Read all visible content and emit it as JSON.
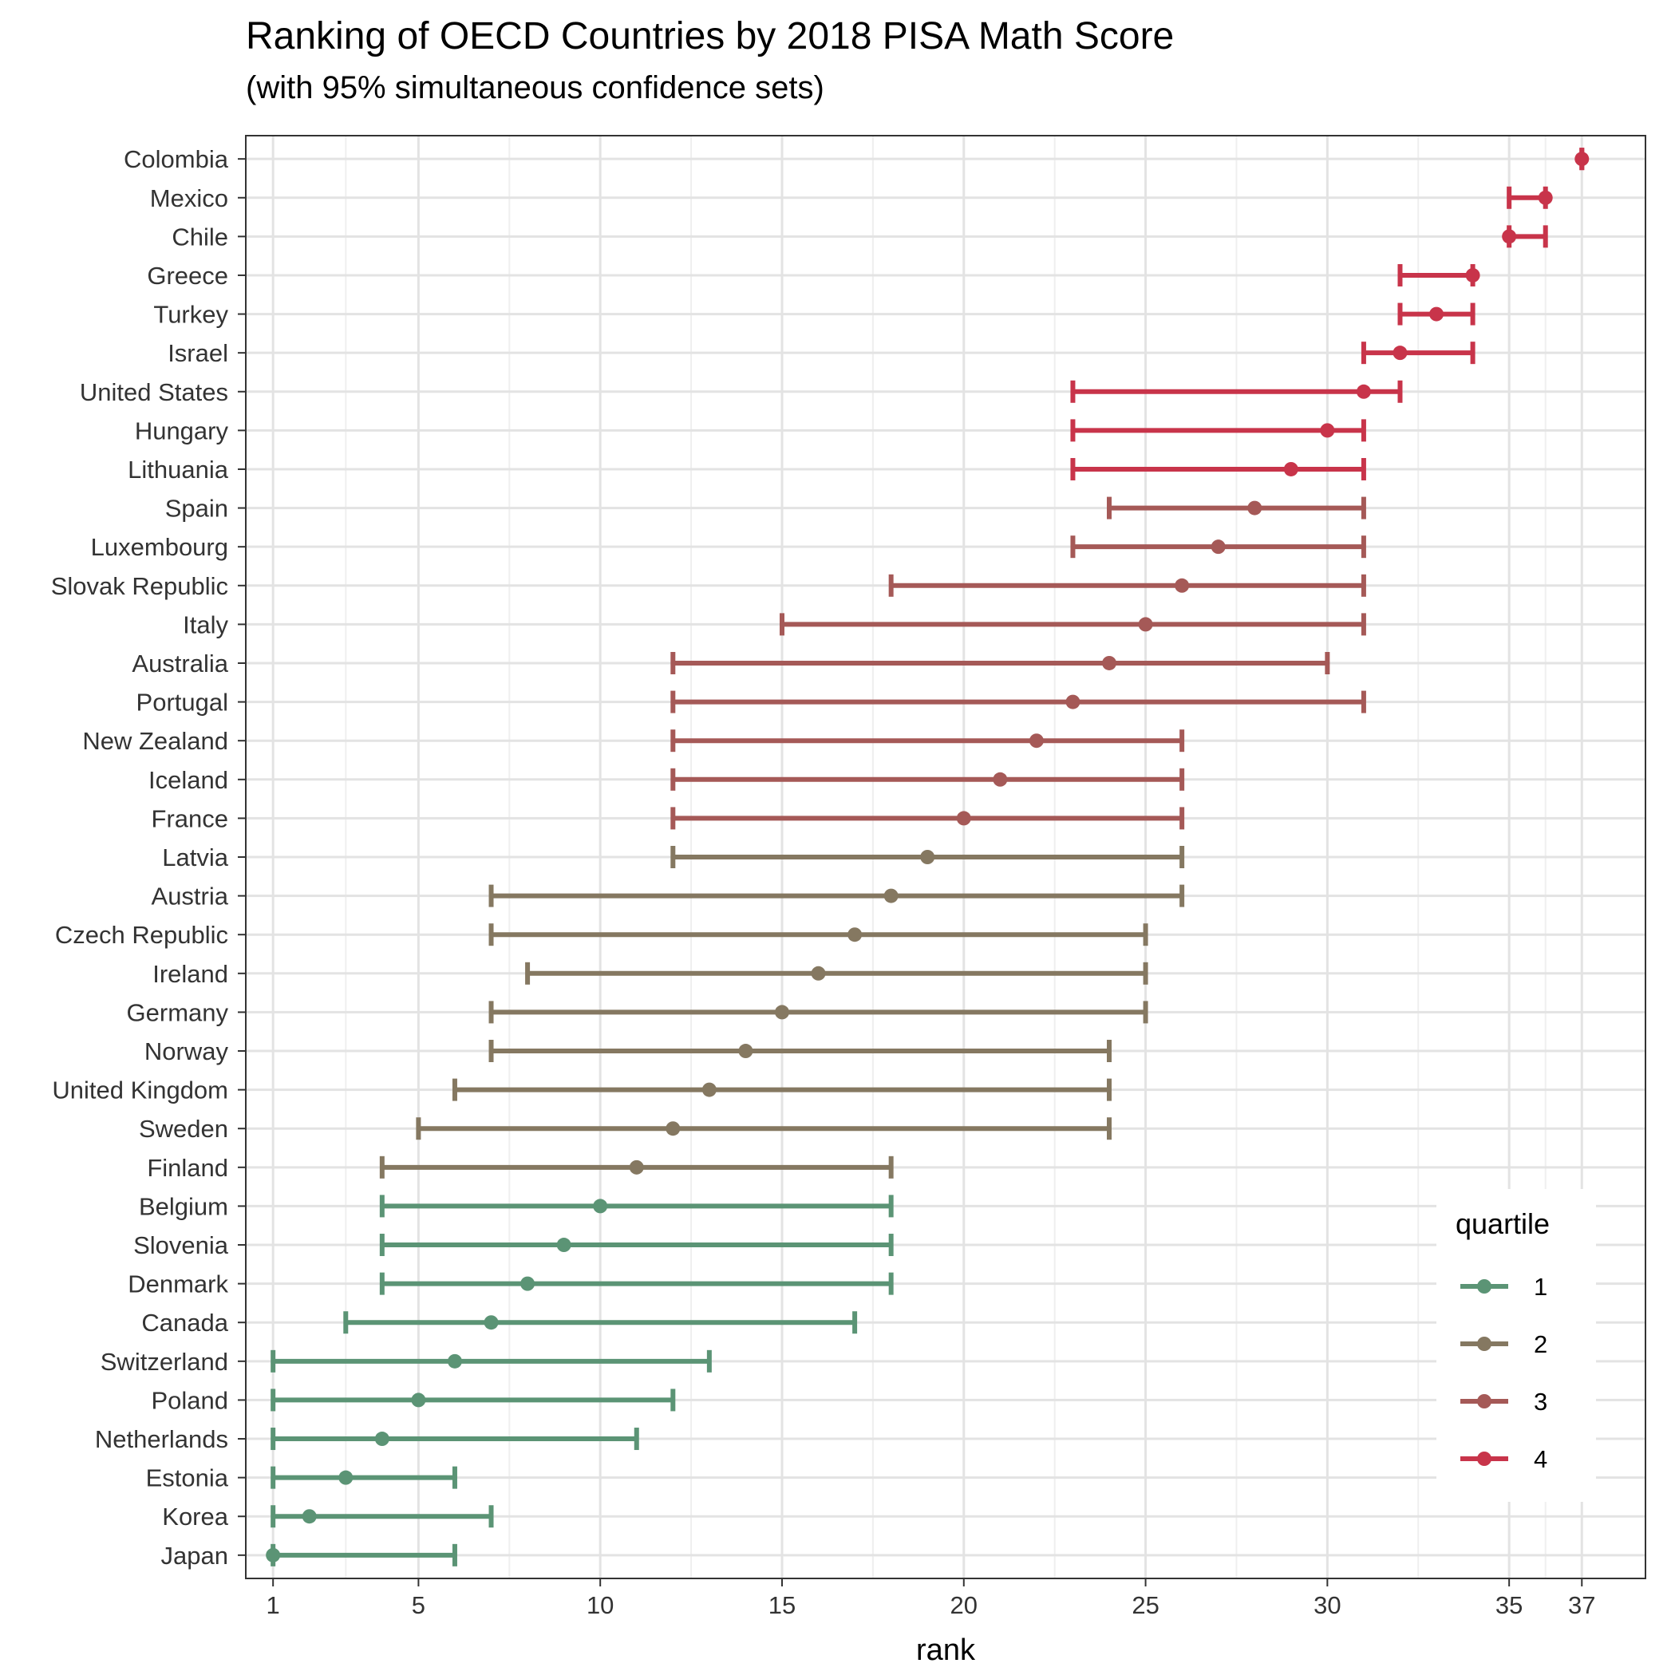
{
  "chart_data": {
    "type": "errorbar",
    "title": "Ranking of OECD Countries by 2018 PISA Math Score",
    "subtitle": "(with 95% simultaneous confidence sets)",
    "xlabel": "rank",
    "ylabel": "",
    "xlim": [
      0.25,
      38.75
    ],
    "x_ticks": [
      1,
      5,
      10,
      15,
      20,
      25,
      30,
      35,
      37
    ],
    "grid": true,
    "legend": {
      "title": "quartile",
      "placement": "bottom-right",
      "entries": [
        {
          "label": "1",
          "color": "#5b9475"
        },
        {
          "label": "2",
          "color": "#857861"
        },
        {
          "label": "3",
          "color": "#a55957"
        },
        {
          "label": "4",
          "color": "#c8344a"
        }
      ]
    },
    "countries": [
      {
        "name": "Colombia",
        "rank": 37,
        "lower": 37,
        "upper": 37,
        "quartile": 4
      },
      {
        "name": "Mexico",
        "rank": 36,
        "lower": 35,
        "upper": 36,
        "quartile": 4
      },
      {
        "name": "Chile",
        "rank": 35,
        "lower": 35,
        "upper": 36,
        "quartile": 4
      },
      {
        "name": "Greece",
        "rank": 34,
        "lower": 32,
        "upper": 34,
        "quartile": 4
      },
      {
        "name": "Turkey",
        "rank": 33,
        "lower": 32,
        "upper": 34,
        "quartile": 4
      },
      {
        "name": "Israel",
        "rank": 32,
        "lower": 31,
        "upper": 34,
        "quartile": 4
      },
      {
        "name": "United States",
        "rank": 31,
        "lower": 23,
        "upper": 32,
        "quartile": 4
      },
      {
        "name": "Hungary",
        "rank": 30,
        "lower": 23,
        "upper": 31,
        "quartile": 4
      },
      {
        "name": "Lithuania",
        "rank": 29,
        "lower": 23,
        "upper": 31,
        "quartile": 4
      },
      {
        "name": "Spain",
        "rank": 28,
        "lower": 24,
        "upper": 31,
        "quartile": 3
      },
      {
        "name": "Luxembourg",
        "rank": 27,
        "lower": 23,
        "upper": 31,
        "quartile": 3
      },
      {
        "name": "Slovak Republic",
        "rank": 26,
        "lower": 18,
        "upper": 31,
        "quartile": 3
      },
      {
        "name": "Italy",
        "rank": 25,
        "lower": 15,
        "upper": 31,
        "quartile": 3
      },
      {
        "name": "Australia",
        "rank": 24,
        "lower": 12,
        "upper": 30,
        "quartile": 3
      },
      {
        "name": "Portugal",
        "rank": 23,
        "lower": 12,
        "upper": 31,
        "quartile": 3
      },
      {
        "name": "New Zealand",
        "rank": 22,
        "lower": 12,
        "upper": 26,
        "quartile": 3
      },
      {
        "name": "Iceland",
        "rank": 21,
        "lower": 12,
        "upper": 26,
        "quartile": 3
      },
      {
        "name": "France",
        "rank": 20,
        "lower": 12,
        "upper": 26,
        "quartile": 3
      },
      {
        "name": "Latvia",
        "rank": 19,
        "lower": 12,
        "upper": 26,
        "quartile": 2
      },
      {
        "name": "Austria",
        "rank": 18,
        "lower": 7,
        "upper": 26,
        "quartile": 2
      },
      {
        "name": "Czech Republic",
        "rank": 17,
        "lower": 7,
        "upper": 25,
        "quartile": 2
      },
      {
        "name": "Ireland",
        "rank": 16,
        "lower": 8,
        "upper": 25,
        "quartile": 2
      },
      {
        "name": "Germany",
        "rank": 15,
        "lower": 7,
        "upper": 25,
        "quartile": 2
      },
      {
        "name": "Norway",
        "rank": 14,
        "lower": 7,
        "upper": 24,
        "quartile": 2
      },
      {
        "name": "United Kingdom",
        "rank": 13,
        "lower": 6,
        "upper": 24,
        "quartile": 2
      },
      {
        "name": "Sweden",
        "rank": 12,
        "lower": 5,
        "upper": 24,
        "quartile": 2
      },
      {
        "name": "Finland",
        "rank": 11,
        "lower": 4,
        "upper": 18,
        "quartile": 2
      },
      {
        "name": "Belgium",
        "rank": 10,
        "lower": 4,
        "upper": 18,
        "quartile": 1
      },
      {
        "name": "Slovenia",
        "rank": 9,
        "lower": 4,
        "upper": 18,
        "quartile": 1
      },
      {
        "name": "Denmark",
        "rank": 8,
        "lower": 4,
        "upper": 18,
        "quartile": 1
      },
      {
        "name": "Canada",
        "rank": 7,
        "lower": 3,
        "upper": 17,
        "quartile": 1
      },
      {
        "name": "Switzerland",
        "rank": 6,
        "lower": 1,
        "upper": 13,
        "quartile": 1
      },
      {
        "name": "Poland",
        "rank": 5,
        "lower": 1,
        "upper": 12,
        "quartile": 1
      },
      {
        "name": "Netherlands",
        "rank": 4,
        "lower": 1,
        "upper": 11,
        "quartile": 1
      },
      {
        "name": "Estonia",
        "rank": 3,
        "lower": 1,
        "upper": 6,
        "quartile": 1
      },
      {
        "name": "Korea",
        "rank": 2,
        "lower": 1,
        "upper": 7,
        "quartile": 1
      },
      {
        "name": "Japan",
        "rank": 1,
        "lower": 1,
        "upper": 6,
        "quartile": 1
      }
    ]
  }
}
